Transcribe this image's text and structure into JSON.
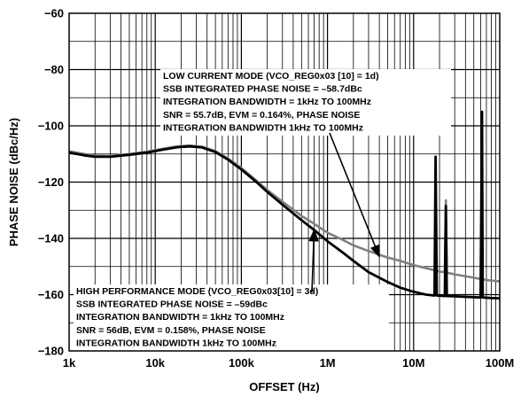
{
  "chart_data": {
    "type": "line",
    "xlabel": "OFFSET (Hz)",
    "ylabel": "PHASE NOISE (dBc/Hz)",
    "xscale": "log",
    "xlim": [
      1000,
      100000000
    ],
    "ylim": [
      -180,
      -60
    ],
    "x_tick_labels": [
      "1k",
      "10k",
      "100k",
      "1M",
      "10M",
      "100M"
    ],
    "y_tick_labels": [
      "−60",
      "−80",
      "−100",
      "−120",
      "−140",
      "−160",
      "−180"
    ],
    "grid": true,
    "series": [
      {
        "key": "high_performance",
        "color": "#000000",
        "points": [
          [
            1000,
            -109.5
          ],
          [
            1500,
            -110.5
          ],
          [
            2000,
            -111
          ],
          [
            3000,
            -111
          ],
          [
            5000,
            -110.3
          ],
          [
            8000,
            -109.5
          ],
          [
            12000,
            -108.5
          ],
          [
            18000,
            -107.6
          ],
          [
            25000,
            -107.3
          ],
          [
            35000,
            -107.7
          ],
          [
            50000,
            -109.3
          ],
          [
            70000,
            -112
          ],
          [
            100000,
            -115.5
          ],
          [
            150000,
            -120
          ],
          [
            200000,
            -123.5
          ],
          [
            300000,
            -128
          ],
          [
            500000,
            -133.5
          ],
          [
            700000,
            -137
          ],
          [
            1000000,
            -141
          ],
          [
            1500000,
            -145
          ],
          [
            2000000,
            -148
          ],
          [
            3000000,
            -152
          ],
          [
            5000000,
            -155.5
          ],
          [
            7000000,
            -157.5
          ],
          [
            10000000,
            -159
          ],
          [
            14000000,
            -160
          ],
          [
            17500000,
            -160.3
          ],
          [
            18000000,
            -111
          ],
          [
            18600000,
            -160.3
          ],
          [
            23000000,
            -160.5
          ],
          [
            23700000,
            -128.5
          ],
          [
            24300000,
            -160.5
          ],
          [
            30000000,
            -160.6
          ],
          [
            40000000,
            -160.8
          ],
          [
            60000000,
            -161
          ],
          [
            62200000,
            -95
          ],
          [
            63500000,
            -161
          ],
          [
            80000000,
            -161.2
          ],
          [
            100000000,
            -161.3
          ]
        ]
      },
      {
        "key": "low_current",
        "color": "#808080",
        "points": [
          [
            1000,
            -109
          ],
          [
            1500,
            -110
          ],
          [
            2000,
            -110.6
          ],
          [
            3000,
            -110.7
          ],
          [
            5000,
            -110
          ],
          [
            8000,
            -109.2
          ],
          [
            12000,
            -108.2
          ],
          [
            18000,
            -107.3
          ],
          [
            25000,
            -107
          ],
          [
            35000,
            -107.4
          ],
          [
            50000,
            -109
          ],
          [
            70000,
            -111.6
          ],
          [
            100000,
            -115
          ],
          [
            150000,
            -119.5
          ],
          [
            200000,
            -122.8
          ],
          [
            300000,
            -127
          ],
          [
            500000,
            -132
          ],
          [
            700000,
            -134.8
          ],
          [
            1000000,
            -138
          ],
          [
            1500000,
            -140.5
          ],
          [
            2000000,
            -142.5
          ],
          [
            3000000,
            -144.5
          ],
          [
            5000000,
            -146.8
          ],
          [
            7000000,
            -148
          ],
          [
            10000000,
            -149.5
          ],
          [
            15000000,
            -150.8
          ],
          [
            20000000,
            -151.8
          ],
          [
            23000000,
            -152
          ],
          [
            23700000,
            -126.5
          ],
          [
            24300000,
            -152.2
          ],
          [
            30000000,
            -152.8
          ],
          [
            50000000,
            -154
          ],
          [
            70000000,
            -154.8
          ],
          [
            100000000,
            -155.3
          ]
        ]
      }
    ],
    "annotations": [
      {
        "key": "low_current",
        "lines": [
          "LOW CURRENT MODE (VCO_REG0x03 [10] = 1d)",
          "SSB INTEGRATED PHASE NOISE = –58.7dBc",
          "INTEGRATION BANDWIDTH = 1kHz TO 100MHz",
          "SNR = 55.7dB, EVM = 0.164%, PHASE NOISE",
          "INTEGRATION BANDWIDTH 1kHz TO 100MHz"
        ]
      },
      {
        "key": "high_performance",
        "lines": [
          "HIGH PERFORMANCE MODE (VCO_REG0x03[10] = 3d)",
          "SSB INTEGRATED PHASE NOISE = –59dBc",
          "INTEGRATION BANDWIDTH = 1kHz TO 100MHz",
          "SNR = 56dB, EVM = 0.158%, PHASE NOISE",
          "INTEGRATION BANDWIDTH 1kHz TO 100MHz"
        ]
      }
    ],
    "arrows": [
      {
        "key": "low_current",
        "target": [
          4000000,
          -146.5
        ]
      },
      {
        "key": "high_performance",
        "target": [
          700000,
          -137
        ]
      }
    ]
  }
}
